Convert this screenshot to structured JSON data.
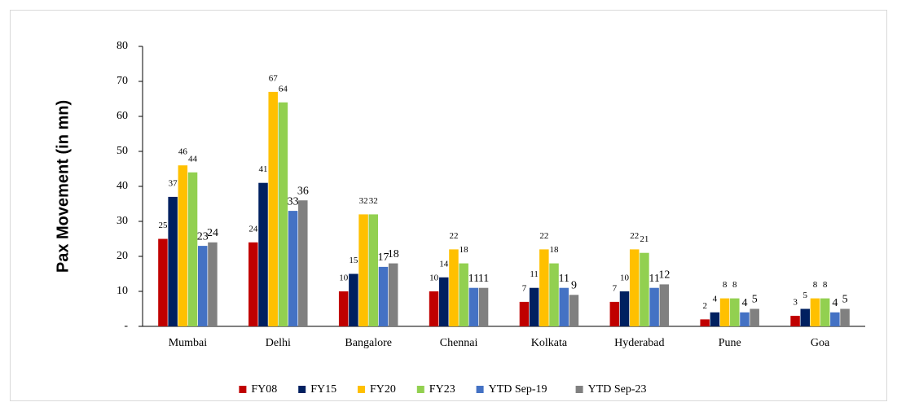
{
  "chart_data": {
    "type": "bar",
    "y_label": "Pax Movement  (in mn)",
    "categories": [
      "Mumbai",
      "Delhi",
      "Bangalore",
      "Chennai",
      "Kolkata",
      "Hyderabad",
      "Pune",
      "Goa"
    ],
    "series": [
      {
        "name": "FY08",
        "color": "#c00000",
        "values": [
          25,
          24,
          10,
          10,
          7,
          7,
          2,
          3
        ]
      },
      {
        "name": "FY15",
        "color": "#002060",
        "values": [
          37,
          41,
          15,
          14,
          11,
          10,
          4,
          5
        ]
      },
      {
        "name": "FY20",
        "color": "#ffc000",
        "values": [
          46,
          67,
          32,
          22,
          22,
          22,
          8,
          8
        ]
      },
      {
        "name": "FY23",
        "color": "#92d050",
        "values": [
          44,
          64,
          32,
          18,
          18,
          21,
          8,
          8
        ]
      },
      {
        "name": "YTD Sep-19",
        "color": "#4472c4",
        "values": [
          23,
          33,
          17,
          11,
          11,
          11,
          4,
          4
        ]
      },
      {
        "name": "YTD Sep-23",
        "color": "#808080",
        "values": [
          24,
          36,
          18,
          11,
          9,
          12,
          5,
          5
        ]
      }
    ],
    "ylim": [
      0,
      80
    ],
    "yticks": [
      {
        "value": 0,
        "label": "-"
      },
      10,
      20,
      30,
      40,
      50,
      60,
      70,
      80
    ],
    "grid": false,
    "legend": "bottom"
  }
}
